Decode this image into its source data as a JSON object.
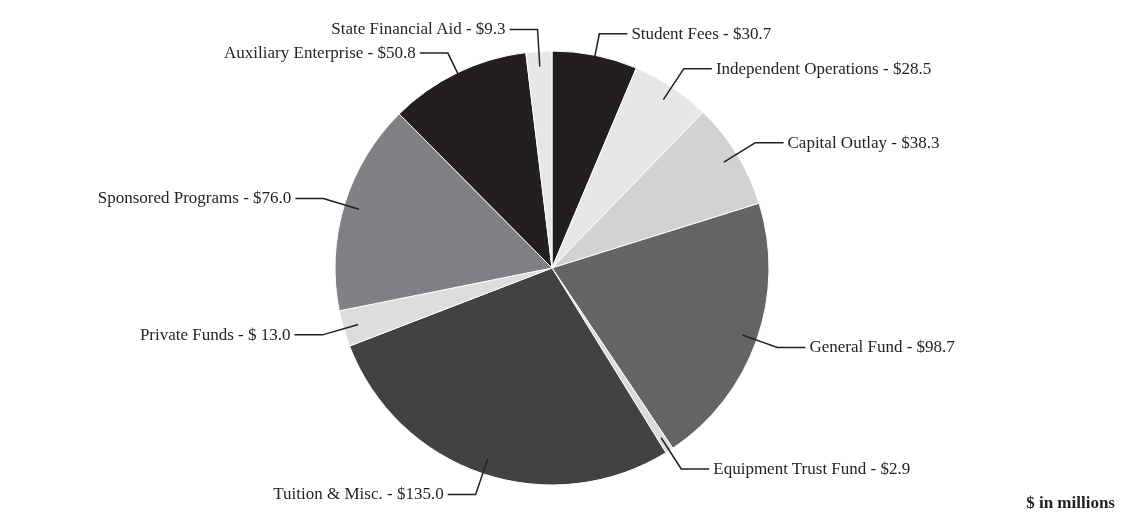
{
  "chart_data": {
    "type": "pie",
    "categories": [
      "Student Fees",
      "Independent Operations",
      "Capital Outlay",
      "General Fund",
      "Equipment Trust Fund",
      "Tuition & Misc.",
      "Private Funds",
      "Sponsored Programs",
      "Auxiliary Enterprise",
      "State Financial Aid"
    ],
    "values": [
      30.7,
      28.5,
      38.3,
      98.7,
      2.9,
      135.0,
      13.0,
      76.0,
      50.8,
      9.3
    ],
    "value_labels": [
      "$30.7",
      "$28.5",
      "$38.3",
      "$98.7",
      "$2.9",
      "$135.0",
      "$ 13.0",
      "$76.0",
      "$50.8",
      "$9.3"
    ],
    "colors": [
      "#231f20",
      "#e6e7e8",
      "#d1d2d4",
      "#636466",
      "#d9dadb",
      "#414244",
      "#dcdddf",
      "#808184",
      "#231f20",
      "#e6e7e8"
    ],
    "annotations": [
      "$ in millions"
    ]
  }
}
